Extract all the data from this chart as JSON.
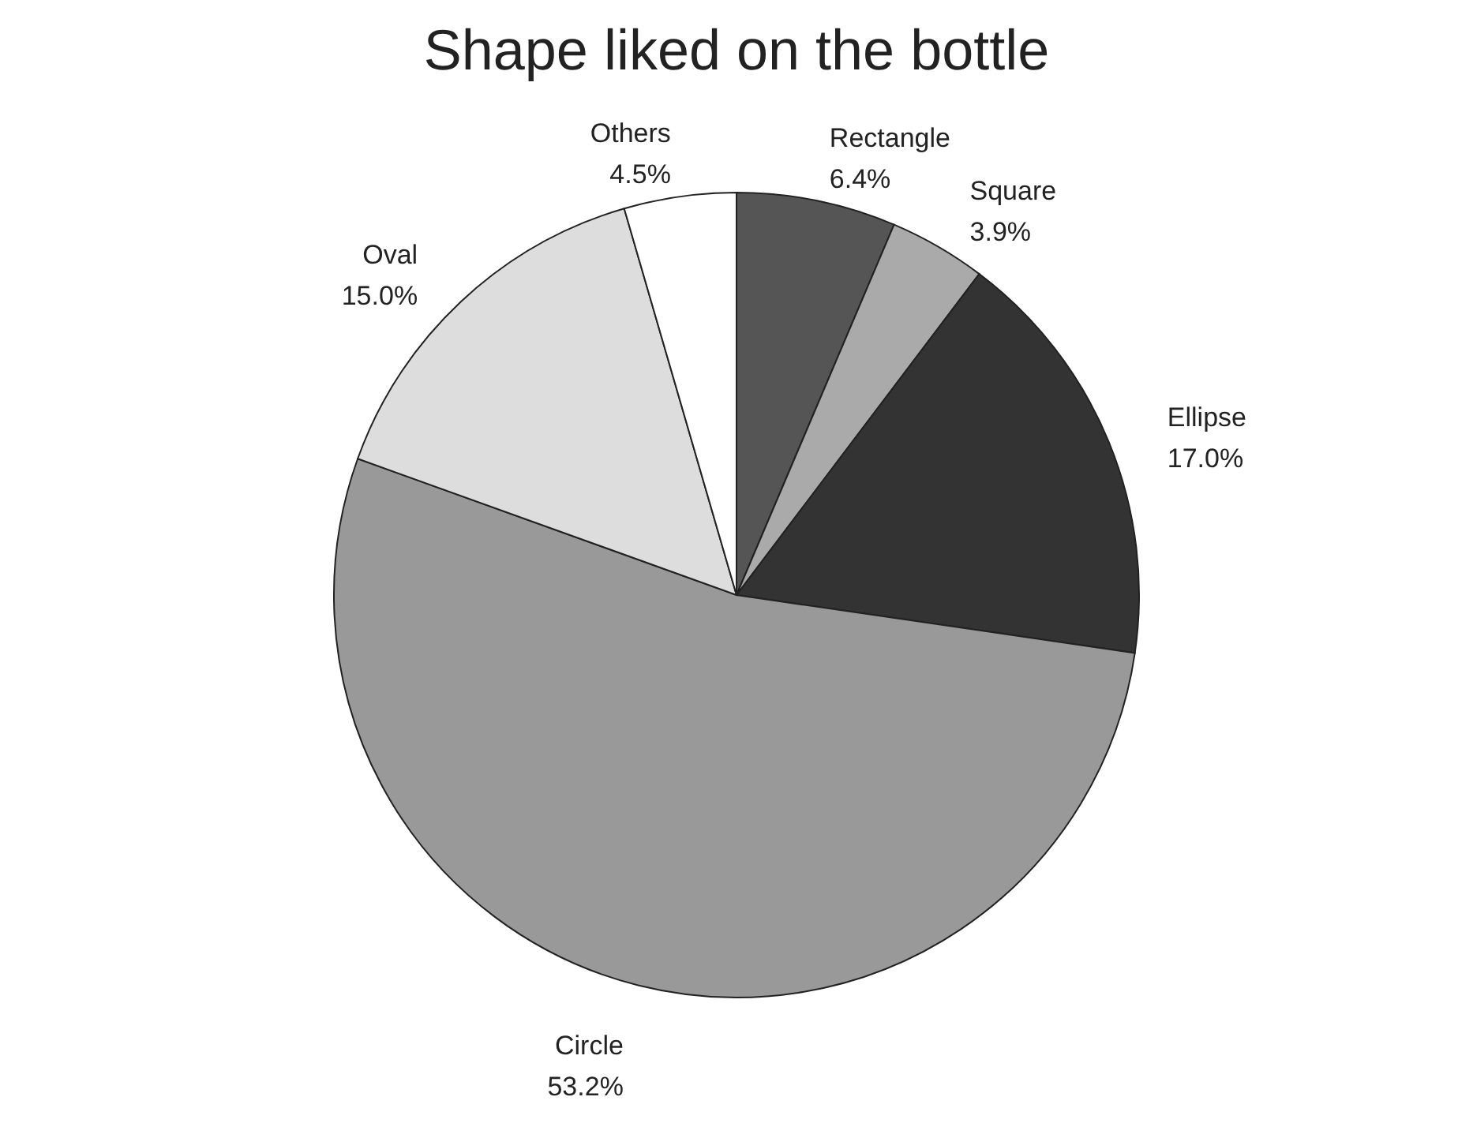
{
  "chart_data": {
    "type": "pie",
    "title": "Shape liked on the bottle",
    "categories": [
      "Rectangle",
      "Square",
      "Ellipse",
      "Circle",
      "Oval",
      "Others"
    ],
    "values": [
      6.4,
      3.9,
      17.0,
      53.2,
      15.0,
      4.5
    ],
    "value_labels": [
      "6.4%",
      "3.9%",
      "17.0%",
      "53.2%",
      "15.0%",
      "4.5%"
    ],
    "colors": [
      "#555555",
      "#aaaaaa",
      "#333333",
      "#999999",
      "#dddddd",
      "#ffffff"
    ],
    "legend": false
  }
}
